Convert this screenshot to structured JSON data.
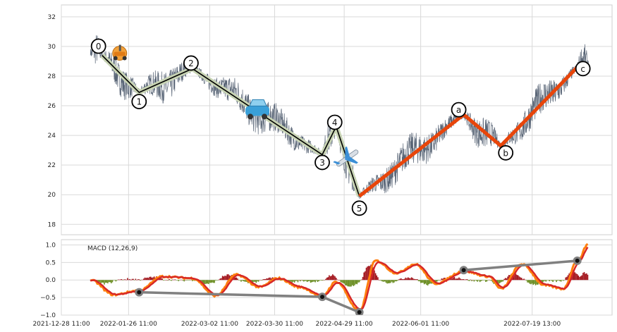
{
  "chart_data": [
    {
      "type": "line",
      "panel": "price",
      "ylim": [
        17.3,
        32.8
      ],
      "yticks": [
        18,
        20,
        22,
        24,
        26,
        28,
        30,
        32
      ],
      "grid": true,
      "wave_points": [
        {
          "label": "0",
          "date": "2022-01-15",
          "value": 29.4,
          "marker": "scooter"
        },
        {
          "label": "1",
          "date": "2022-01-31",
          "value": 26.9
        },
        {
          "label": "2",
          "date": "2022-02-23",
          "value": 28.5
        },
        {
          "label": "3",
          "date": "2022-04-20",
          "value": 22.7,
          "marker": "car"
        },
        {
          "label": "4",
          "date": "2022-04-26",
          "value": 24.6
        },
        {
          "label": "5",
          "date": "2022-05-06",
          "value": 19.9,
          "marker": "airplane"
        },
        {
          "label": "a",
          "date": "2022-06-20",
          "value": 25.4
        },
        {
          "label": "b",
          "date": "2022-07-06",
          "value": 23.3
        },
        {
          "label": "c",
          "date": "2022-08-08",
          "value": 28.6
        }
      ],
      "colors": {
        "impulse": "#000000",
        "impulse_halo": "#c8d4b4",
        "correction": "#e8450a",
        "price": "#5a6677"
      }
    },
    {
      "type": "line",
      "panel": "macd",
      "title": "MACD (12,26,9)",
      "ylim": [
        -1.0,
        1.15
      ],
      "yticks": [
        -1.0,
        -0.5,
        0.0,
        0.5,
        1.0
      ],
      "ytick_labels": [
        "−1.0",
        "−0.5",
        "0.0",
        "0.5",
        "1.0"
      ],
      "divergence_points": [
        {
          "date": "2022-01-31",
          "value": -0.35
        },
        {
          "date": "2022-04-20",
          "value": -0.48
        },
        {
          "date": "2022-05-06",
          "value": -0.92
        },
        {
          "date": "2022-06-20",
          "value": 0.28
        },
        {
          "date": "2022-08-08",
          "value": 0.55
        }
      ],
      "colors": {
        "macd": "#ff7f0e",
        "signal": "#d62728",
        "hist_pos": "#a3171e",
        "hist_neg": "#6b8e23",
        "divergence": "#808080"
      }
    }
  ],
  "x_axis": {
    "range": [
      "2021-12-28 11:00",
      "2022-08-23 00:00"
    ],
    "tick_labels": [
      {
        "date": "2021-12-28 11:00",
        "label": "2021-12-28 11:00"
      },
      {
        "date": "2022-01-26 11:00",
        "label": "2022-01-26 11:00"
      },
      {
        "date": "2022-03-02 11:00",
        "label": "2022-03-02 11:00"
      },
      {
        "date": "2022-03-30 11:00",
        "label": "2022-03-30 11:00"
      },
      {
        "date": "2022-04-29 11:00",
        "label": "2022-04-29 11:00"
      },
      {
        "date": "2022-06-01 11:00",
        "label": "2022-06-01 11:00"
      },
      {
        "date": "2022-07-19 13:00",
        "label": "2022-07-19 13:00"
      }
    ]
  }
}
